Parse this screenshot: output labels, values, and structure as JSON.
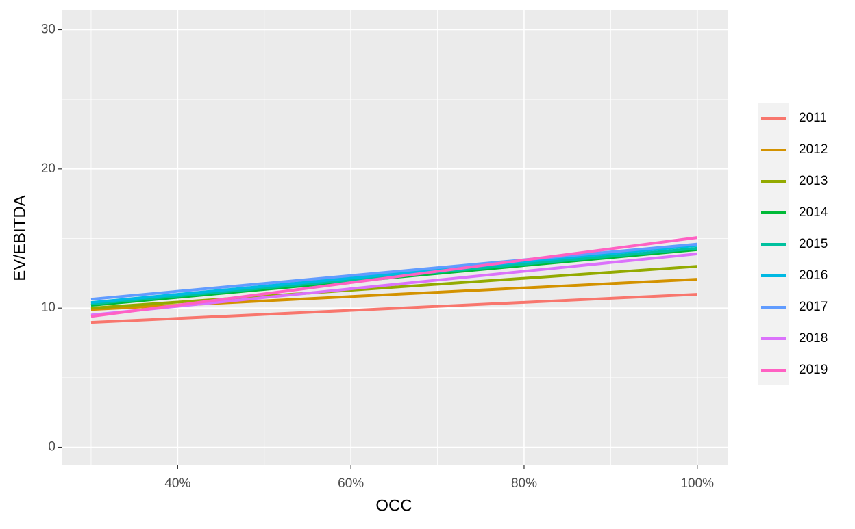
{
  "chart_data": {
    "type": "line",
    "x_label": "OCC",
    "y_label": "EV/EBITDA",
    "x": [
      30,
      100
    ],
    "series": [
      {
        "name": "2011",
        "color": "#F8766D",
        "values": [
          8.97,
          10.99
        ]
      },
      {
        "name": "2012",
        "color": "#D39200",
        "values": [
          9.9,
          12.07
        ]
      },
      {
        "name": "2013",
        "color": "#93AA00",
        "values": [
          10.0,
          13.0
        ]
      },
      {
        "name": "2014",
        "color": "#00BA38",
        "values": [
          10.2,
          14.2
        ]
      },
      {
        "name": "2015",
        "color": "#00C19F",
        "values": [
          10.3,
          14.3
        ]
      },
      {
        "name": "2016",
        "color": "#00B9E3",
        "values": [
          10.4,
          14.5
        ]
      },
      {
        "name": "2017",
        "color": "#619CFF",
        "values": [
          10.64,
          14.6
        ]
      },
      {
        "name": "2018",
        "color": "#DB72FB",
        "values": [
          9.5,
          13.9
        ]
      },
      {
        "name": "2019",
        "color": "#FF61C3",
        "values": [
          9.4,
          15.07
        ]
      }
    ],
    "xlim": [
      26.6,
      103.5
    ],
    "ylim": [
      -1.3,
      31.4
    ],
    "xticks": [
      {
        "value": 40,
        "label": "40%"
      },
      {
        "value": 60,
        "label": "60%"
      },
      {
        "value": 80,
        "label": "80%"
      },
      {
        "value": 100,
        "label": "100%"
      }
    ],
    "yticks": [
      0,
      10,
      20,
      30
    ],
    "grid": true,
    "legend": "right"
  }
}
